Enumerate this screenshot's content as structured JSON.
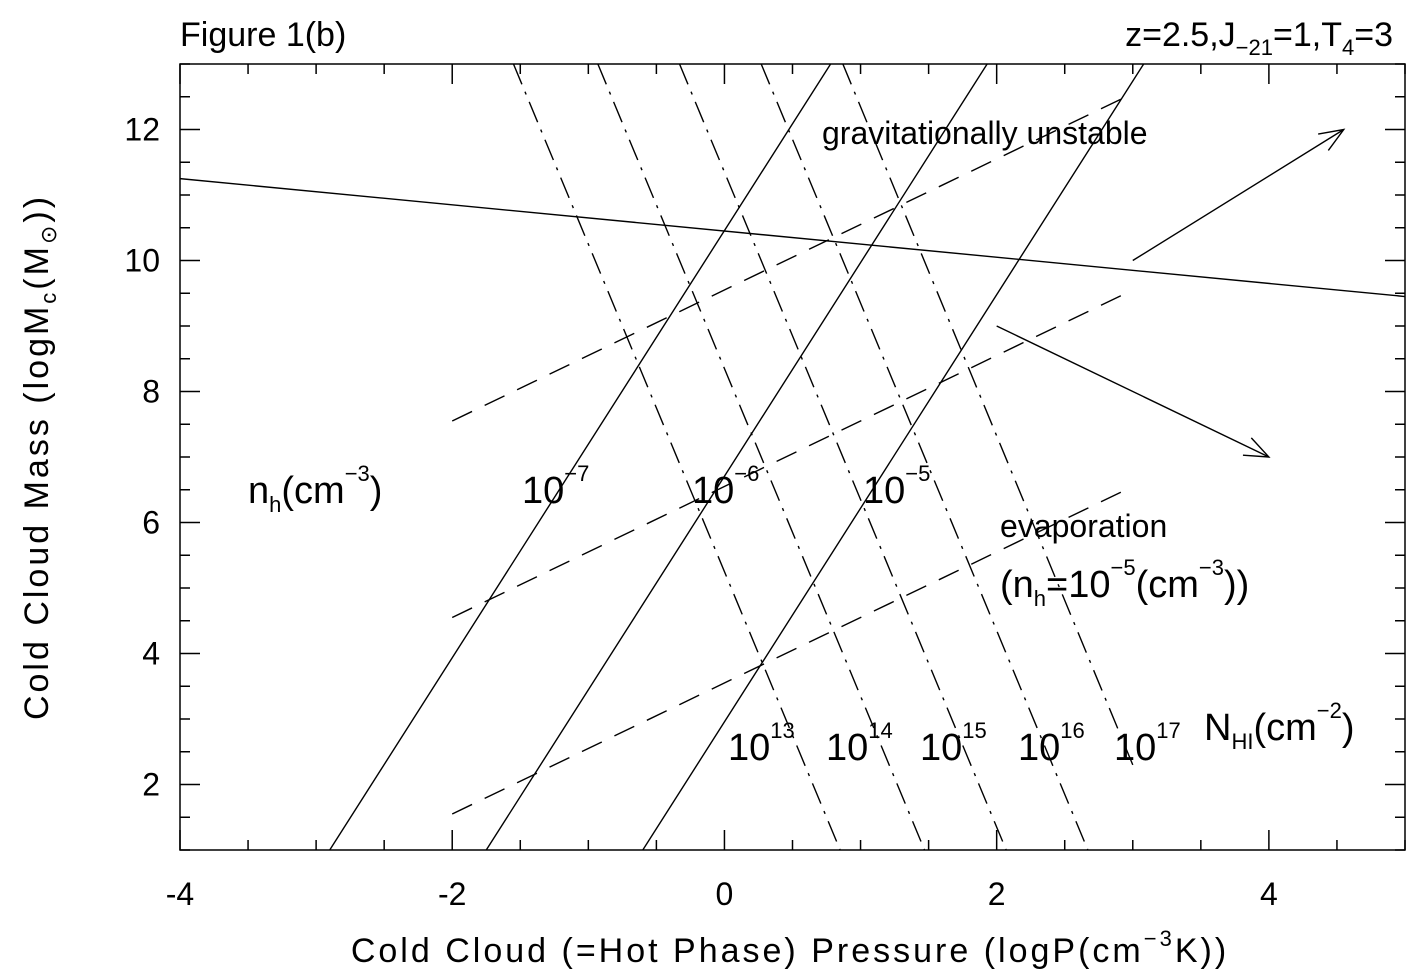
{
  "chart_data": {
    "type": "line",
    "title": "Figure 1(b)",
    "params_text": "z=2.5,J",
    "params_j_sub": "−21",
    "params_mid": "=1,T",
    "params_t_sub": "4",
    "params_tail": "=3",
    "xlabel": "Cold Cloud (=Hot Phase) Pressure (logP(cm",
    "xlabel_sup": "−3",
    "xlabel_tail": "K))",
    "ylabel": "Cold Cloud Mass (logM",
    "ylabel_sub": "c",
    "ylabel_tail": "(M",
    "ylabel_sun": "⊙",
    "ylabel_end": "))",
    "xlim": [
      -4,
      5
    ],
    "ylim": [
      1,
      13
    ],
    "x_ticks": [
      "-4",
      "-2",
      "0",
      "2",
      "4"
    ],
    "y_ticks": [
      "2",
      "4",
      "6",
      "8",
      "10",
      "12"
    ],
    "grid": false,
    "series": [
      {
        "style": "solid",
        "x": [
          -4,
          5
        ],
        "y": [
          11.25,
          9.45
        ]
      },
      {
        "style": "solid",
        "x": [
          -2.9,
          0.78
        ],
        "y": [
          1,
          13
        ]
      },
      {
        "style": "solid",
        "x": [
          -1.75,
          1.93
        ],
        "y": [
          1,
          13
        ]
      },
      {
        "style": "solid",
        "x": [
          -0.6,
          3.08
        ],
        "y": [
          1,
          13
        ]
      },
      {
        "style": "dashed",
        "x": [
          -2,
          3
        ],
        "y": [
          7.55,
          12.55
        ]
      },
      {
        "style": "dashed",
        "x": [
          -2,
          3
        ],
        "y": [
          4.55,
          9.55
        ]
      },
      {
        "style": "dashed",
        "x": [
          -2,
          3
        ],
        "y": [
          1.55,
          6.55
        ]
      },
      {
        "style": "dashdot",
        "x": [
          -1.55,
          0.85
        ],
        "y": [
          13,
          1
        ]
      },
      {
        "style": "dashdot",
        "x": [
          -0.93,
          1.47
        ],
        "y": [
          13,
          1
        ]
      },
      {
        "style": "dashdot",
        "x": [
          -0.33,
          2.07
        ],
        "y": [
          13,
          1
        ]
      },
      {
        "style": "dashdot",
        "x": [
          0.27,
          2.67
        ],
        "y": [
          13,
          1
        ]
      },
      {
        "style": "dashdot",
        "x": [
          0.87,
          3.0
        ],
        "y": [
          13,
          2.3
        ]
      }
    ],
    "arrows": [
      {
        "x": [
          3.0,
          4.55
        ],
        "y": [
          10.0,
          12.0
        ]
      },
      {
        "x": [
          2.0,
          4.0
        ],
        "y": [
          9.0,
          7.0
        ]
      }
    ],
    "annotations": {
      "grav": "gravitationally  unstable",
      "nh_label": "n",
      "nh_sub": "h",
      "nh_unit": "(cm",
      "nh_sup": "−3",
      "nh_close": ")",
      "nh_base": "10",
      "nh_exp": [
        "−7",
        "−6",
        "−5"
      ],
      "evap": "evaporation",
      "evap2_a": "(n",
      "evap2_sub": "h",
      "evap2_b": "=10",
      "evap2_sup": "−5",
      "evap2_c": "(cm",
      "evap2_sup2": "−3",
      "evap2_d": "))",
      "nhi_base": "10",
      "nhi_exp": [
        "13",
        "14",
        "15",
        "16",
        "17"
      ],
      "nhi_label": "N",
      "nhi_sub": "HI",
      "nhi_unit": "(cm",
      "nhi_sup": "−2",
      "nhi_close": ")"
    }
  }
}
